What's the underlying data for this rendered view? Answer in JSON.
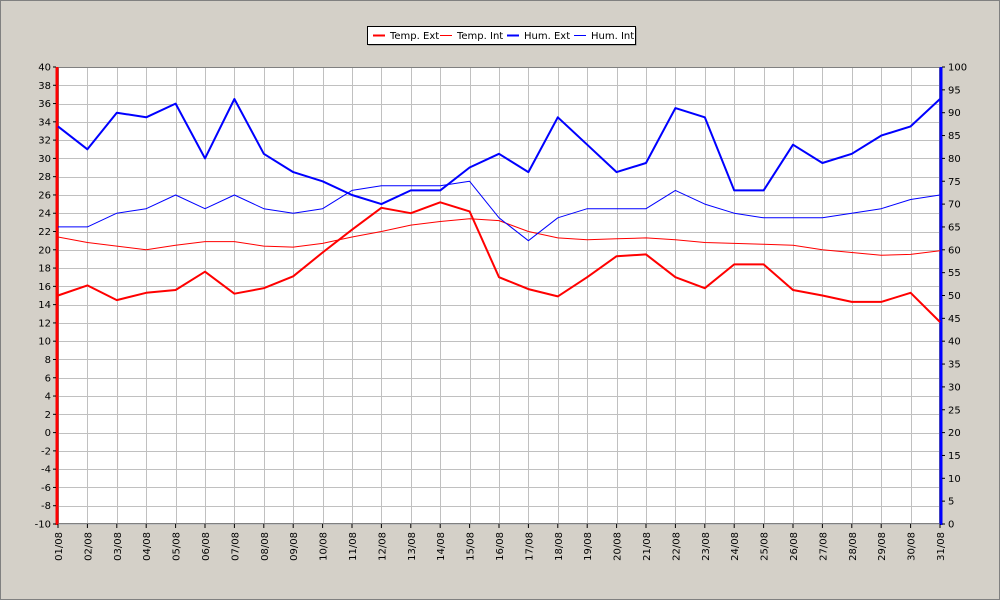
{
  "chart_data": {
    "type": "line",
    "categories": [
      "01/08",
      "02/08",
      "03/08",
      "04/08",
      "05/08",
      "06/08",
      "07/08",
      "08/08",
      "09/08",
      "10/08",
      "11/08",
      "12/08",
      "13/08",
      "14/08",
      "15/08",
      "16/08",
      "17/08",
      "18/08",
      "19/08",
      "20/08",
      "21/08",
      "22/08",
      "23/08",
      "24/08",
      "25/08",
      "26/08",
      "27/08",
      "28/08",
      "29/08",
      "30/08",
      "31/08"
    ],
    "y_left": {
      "min": -10,
      "max": 40,
      "step": 2,
      "color": "#ff0000"
    },
    "y_right": {
      "min": 0,
      "max": 100,
      "step": 5,
      "color": "#0000ff"
    },
    "grid": true,
    "legend_position": "top-center",
    "series": [
      {
        "name": "Temp. Ext",
        "axis": "left",
        "color": "#ff0000",
        "width": 2,
        "values": [
          15.0,
          16.1,
          14.5,
          15.3,
          15.6,
          17.6,
          15.2,
          15.8,
          17.1,
          19.7,
          22.2,
          24.6,
          24.0,
          25.2,
          24.2,
          17.0,
          15.7,
          14.9,
          17.0,
          19.3,
          19.5,
          17.0,
          15.8,
          18.4,
          18.4,
          15.6,
          15.0,
          14.3,
          14.3,
          15.3,
          12.1
        ]
      },
      {
        "name": "Temp. Int",
        "axis": "left",
        "color": "#ff0000",
        "width": 1,
        "values": [
          21.4,
          20.8,
          20.4,
          20.0,
          20.5,
          20.9,
          20.9,
          20.4,
          20.3,
          20.7,
          21.4,
          22.0,
          22.7,
          23.1,
          23.4,
          23.2,
          22.0,
          21.3,
          21.1,
          21.2,
          21.3,
          21.1,
          20.8,
          20.7,
          20.6,
          20.5,
          20.0,
          19.7,
          19.4,
          19.5,
          19.9
        ]
      },
      {
        "name": "Hum. Ext",
        "axis": "right",
        "color": "#0000ff",
        "width": 2,
        "values": [
          87,
          82,
          90,
          89,
          92,
          80,
          93,
          81,
          77,
          75,
          72,
          70,
          73,
          73,
          78,
          81,
          77,
          89,
          83,
          77,
          79,
          91,
          89,
          73,
          73,
          83,
          79,
          81,
          85,
          87,
          93
        ]
      },
      {
        "name": "Hum. Int",
        "axis": "right",
        "color": "#0000ff",
        "width": 1,
        "values": [
          65,
          65,
          68,
          69,
          72,
          69,
          72,
          69,
          68,
          69,
          73,
          74,
          74,
          74,
          75,
          67,
          62,
          67,
          69,
          69,
          69,
          73,
          70,
          68,
          67,
          67,
          67,
          68,
          69,
          71,
          72
        ]
      }
    ]
  }
}
